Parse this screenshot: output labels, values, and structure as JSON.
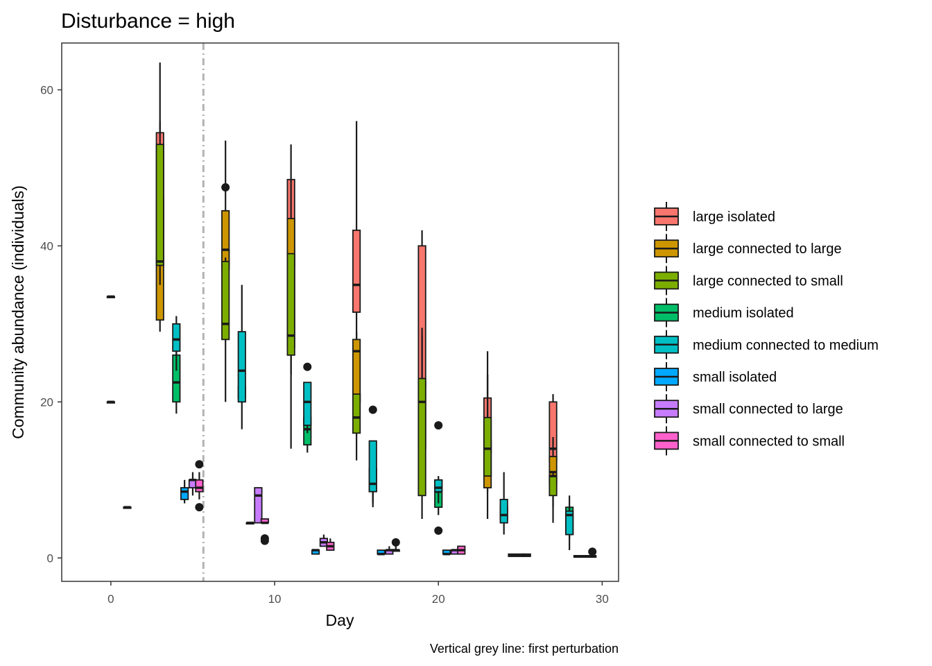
{
  "chart_data": {
    "type": "box",
    "title": "Disturbance = high",
    "xlabel": "Day",
    "ylabel": "Community abundance (individuals)",
    "caption": "Vertical grey line: first perturbation",
    "xlim": [
      -3,
      31
    ],
    "ylim": [
      -3,
      66
    ],
    "x_ticks": [
      0,
      10,
      20,
      30
    ],
    "y_ticks": [
      0,
      20,
      40,
      60
    ],
    "reference_line": {
      "x": 5.65,
      "style": "dot-dash",
      "color": "#b3b3b3"
    },
    "grid": false,
    "legend_position": "right",
    "series": [
      {
        "name": "large isolated",
        "color": "#F8766D",
        "boxes": [
          {
            "day": 3,
            "min": 36,
            "q1": 41,
            "median": 52,
            "q3": 54.5,
            "max": 63.5,
            "outliers": []
          },
          {
            "day": 7,
            "min": 37.5,
            "q1": 37.5,
            "median": 38.5,
            "q3": 39.5,
            "max": 39.5,
            "outliers": [
              47.5,
              29
            ]
          },
          {
            "day": 11,
            "min": 30,
            "q1": 37.5,
            "median": 38,
            "q3": 48.5,
            "max": 53,
            "outliers": []
          },
          {
            "day": 15,
            "min": 22,
            "q1": 31.5,
            "median": 35,
            "q3": 42,
            "max": 56,
            "outliers": []
          },
          {
            "day": 19,
            "min": 11.5,
            "q1": 22,
            "median": 22.5,
            "q3": 40,
            "max": 42,
            "outliers": []
          },
          {
            "day": 23,
            "min": 8.5,
            "q1": 13.5,
            "median": 13.5,
            "q3": 20.5,
            "max": 23.5,
            "outliers": []
          },
          {
            "day": 27,
            "min": 12.5,
            "q1": 12.5,
            "median": 14,
            "q3": 20,
            "max": 21,
            "outliers": []
          }
        ]
      },
      {
        "name": "large connected to large",
        "color": "#CD9600",
        "boxes": [
          {
            "day": 0,
            "min": 33.5,
            "q1": 33.5,
            "median": 33.5,
            "q3": 33.5,
            "max": 33.5,
            "outliers": []
          },
          {
            "day": 3,
            "min": 29,
            "q1": 30.5,
            "median": 39.5,
            "q3": 46,
            "max": 48.5,
            "outliers": []
          },
          {
            "day": 7,
            "min": 35,
            "q1": 37,
            "median": 39.5,
            "q3": 44.5,
            "max": 53.5,
            "outliers": []
          },
          {
            "day": 11,
            "min": 14,
            "q1": 27,
            "median": 32,
            "q3": 43.5,
            "max": 48.5,
            "outliers": []
          },
          {
            "day": 15,
            "min": 12.5,
            "q1": 20,
            "median": 26.5,
            "q3": 28,
            "max": 29,
            "outliers": []
          },
          {
            "day": 19,
            "min": 5,
            "q1": 14,
            "median": 17,
            "q3": 22.5,
            "max": 29.5,
            "outliers": []
          },
          {
            "day": 23,
            "min": 5,
            "q1": 9,
            "median": 11,
            "q3": 15,
            "max": 23.5,
            "outliers": []
          },
          {
            "day": 27,
            "min": 6.5,
            "q1": 9.5,
            "median": 11,
            "q3": 13,
            "max": 15.5,
            "outliers": []
          }
        ]
      },
      {
        "name": "large connected to small",
        "color": "#7CAE00",
        "boxes": [
          {
            "day": 3,
            "min": 35,
            "q1": 37.5,
            "median": 38,
            "q3": 53,
            "max": 56,
            "outliers": []
          },
          {
            "day": 7,
            "min": 20,
            "q1": 28,
            "median": 30,
            "q3": 38,
            "max": 38.5,
            "outliers": []
          },
          {
            "day": 11,
            "min": 23.5,
            "q1": 26,
            "median": 28.5,
            "q3": 39,
            "max": 39,
            "outliers": []
          },
          {
            "day": 15,
            "min": 16,
            "q1": 16,
            "median": 18,
            "q3": 21,
            "max": 21,
            "outliers": []
          },
          {
            "day": 19,
            "min": 8,
            "q1": 8,
            "median": 20,
            "q3": 23,
            "max": 28.5,
            "outliers": []
          },
          {
            "day": 23,
            "min": 10.5,
            "q1": 10.5,
            "median": 14,
            "q3": 18,
            "max": 26.5,
            "outliers": []
          },
          {
            "day": 27,
            "min": 4.5,
            "q1": 8,
            "median": 10.5,
            "q3": 10.5,
            "max": 11,
            "outliers": []
          }
        ]
      },
      {
        "name": "medium isolated",
        "color": "#00BE67",
        "boxes": [
          {
            "day": 0,
            "min": 20,
            "q1": 20,
            "median": 20,
            "q3": 20,
            "max": 20,
            "outliers": []
          },
          {
            "day": 4,
            "min": 18.5,
            "q1": 20,
            "median": 22.5,
            "q3": 26,
            "max": 27,
            "outliers": []
          },
          {
            "day": 8,
            "min": 20.5,
            "q1": 20.5,
            "median": 20.5,
            "q3": 22,
            "max": 22.5,
            "outliers": []
          },
          {
            "day": 12,
            "min": 13.5,
            "q1": 14.5,
            "median": 16.5,
            "q3": 18,
            "max": 18,
            "outliers": [
              24.5
            ]
          },
          {
            "day": 16,
            "min": 7,
            "q1": 8.5,
            "median": 10,
            "q3": 11.5,
            "max": 11.5,
            "outliers": [
              19
            ]
          },
          {
            "day": 20,
            "min": 5.5,
            "q1": 6.5,
            "median": 8.5,
            "q3": 10,
            "max": 10,
            "outliers": [
              17,
              3.5
            ]
          },
          {
            "day": 24,
            "min": 4.5,
            "q1": 5,
            "median": 5,
            "q3": 6.5,
            "max": 6.5,
            "outliers": []
          },
          {
            "day": 28,
            "min": 1,
            "q1": 3,
            "median": 3.5,
            "q3": 6.5,
            "max": 8,
            "outliers": []
          }
        ]
      },
      {
        "name": "medium connected to medium",
        "color": "#00BFC4",
        "boxes": [
          {
            "day": 4,
            "min": 24,
            "q1": 26.5,
            "median": 28,
            "q3": 30,
            "max": 31,
            "outliers": []
          },
          {
            "day": 8,
            "min": 16.5,
            "q1": 20,
            "median": 24,
            "q3": 29,
            "max": 35,
            "outliers": []
          },
          {
            "day": 12,
            "min": 16,
            "q1": 17,
            "median": 20,
            "q3": 22.5,
            "max": 22.5,
            "outliers": []
          },
          {
            "day": 16,
            "min": 6.5,
            "q1": 8.5,
            "median": 9.5,
            "q3": 15,
            "max": 15,
            "outliers": []
          },
          {
            "day": 20,
            "min": 7,
            "q1": 8.5,
            "median": 9,
            "q3": 10,
            "max": 10.5,
            "outliers": []
          },
          {
            "day": 24,
            "min": 3,
            "q1": 4.5,
            "median": 5.5,
            "q3": 7.5,
            "max": 11,
            "outliers": []
          },
          {
            "day": 28,
            "min": 2.5,
            "q1": 3,
            "median": 5.5,
            "q3": 6,
            "max": 6.5,
            "outliers": []
          }
        ]
      },
      {
        "name": "small isolated",
        "color": "#00A9FF",
        "boxes": [
          {
            "day": 1,
            "min": 6.5,
            "q1": 6.5,
            "median": 6.5,
            "q3": 6.5,
            "max": 6.5,
            "outliers": []
          },
          {
            "day": 4.5,
            "min": 7,
            "q1": 7.5,
            "median": 8.5,
            "q3": 9,
            "max": 10,
            "outliers": []
          },
          {
            "day": 8.5,
            "min": 4.5,
            "q1": 4.5,
            "median": 4.5,
            "q3": 4.5,
            "max": 4.5,
            "outliers": []
          },
          {
            "day": 12.5,
            "min": 0.5,
            "q1": 0.5,
            "median": 1,
            "q3": 1,
            "max": 1,
            "outliers": []
          },
          {
            "day": 16.5,
            "min": 0.5,
            "q1": 0.5,
            "median": 0.5,
            "q3": 1,
            "max": 1,
            "outliers": []
          },
          {
            "day": 20.5,
            "min": 0.5,
            "q1": 0.5,
            "median": 0.5,
            "q3": 1,
            "max": 1,
            "outliers": []
          },
          {
            "day": 24.5,
            "min": 0.2,
            "q1": 0.2,
            "median": 0.3,
            "q3": 0.5,
            "max": 0.5,
            "outliers": []
          },
          {
            "day": 28.5,
            "min": 0.1,
            "q1": 0.1,
            "median": 0.2,
            "q3": 0.3,
            "max": 0.3,
            "outliers": []
          }
        ]
      },
      {
        "name": "small connected to large",
        "color": "#C77CFF",
        "boxes": [
          {
            "day": 5,
            "min": 8,
            "q1": 9,
            "median": 10,
            "q3": 10,
            "max": 11,
            "outliers": []
          },
          {
            "day": 9,
            "min": 4.5,
            "q1": 4.5,
            "median": 8,
            "q3": 9,
            "max": 9,
            "outliers": []
          },
          {
            "day": 13,
            "min": 1.5,
            "q1": 1.5,
            "median": 2,
            "q3": 2.5,
            "max": 3,
            "outliers": []
          },
          {
            "day": 17,
            "min": 0.5,
            "q1": 0.5,
            "median": 1,
            "q3": 1,
            "max": 1.5,
            "outliers": []
          },
          {
            "day": 21,
            "min": 0.5,
            "q1": 0.5,
            "median": 1,
            "q3": 1,
            "max": 1,
            "outliers": []
          },
          {
            "day": 25,
            "min": 0.2,
            "q1": 0.2,
            "median": 0.3,
            "q3": 0.5,
            "max": 0.5,
            "outliers": []
          },
          {
            "day": 29,
            "min": 0.1,
            "q1": 0.1,
            "median": 0.2,
            "q3": 0.3,
            "max": 0.3,
            "outliers": []
          }
        ]
      },
      {
        "name": "small connected to small",
        "color": "#FF61CC",
        "boxes": [
          {
            "day": 5.4,
            "min": 7.5,
            "q1": 8.5,
            "median": 9,
            "q3": 10,
            "max": 11,
            "outliers": [
              12,
              6.5
            ]
          },
          {
            "day": 9.4,
            "min": 4.5,
            "q1": 4.5,
            "median": 4.5,
            "q3": 5,
            "max": 5,
            "outliers": [
              2.5,
              2.2
            ]
          },
          {
            "day": 13.4,
            "min": 1,
            "q1": 1,
            "median": 1.5,
            "q3": 2,
            "max": 2.5,
            "outliers": []
          },
          {
            "day": 17.4,
            "min": 1,
            "q1": 1,
            "median": 1,
            "q3": 1,
            "max": 1.5,
            "outliers": [
              2
            ]
          },
          {
            "day": 21.4,
            "min": 0.5,
            "q1": 0.5,
            "median": 1,
            "q3": 1.5,
            "max": 1.5,
            "outliers": []
          },
          {
            "day": 25.4,
            "min": 0.2,
            "q1": 0.2,
            "median": 0.3,
            "q3": 0.5,
            "max": 0.5,
            "outliers": []
          },
          {
            "day": 29.4,
            "min": 0.1,
            "q1": 0.1,
            "median": 0.2,
            "q3": 0.3,
            "max": 0.3,
            "outliers": [
              0.8
            ]
          }
        ]
      }
    ]
  }
}
